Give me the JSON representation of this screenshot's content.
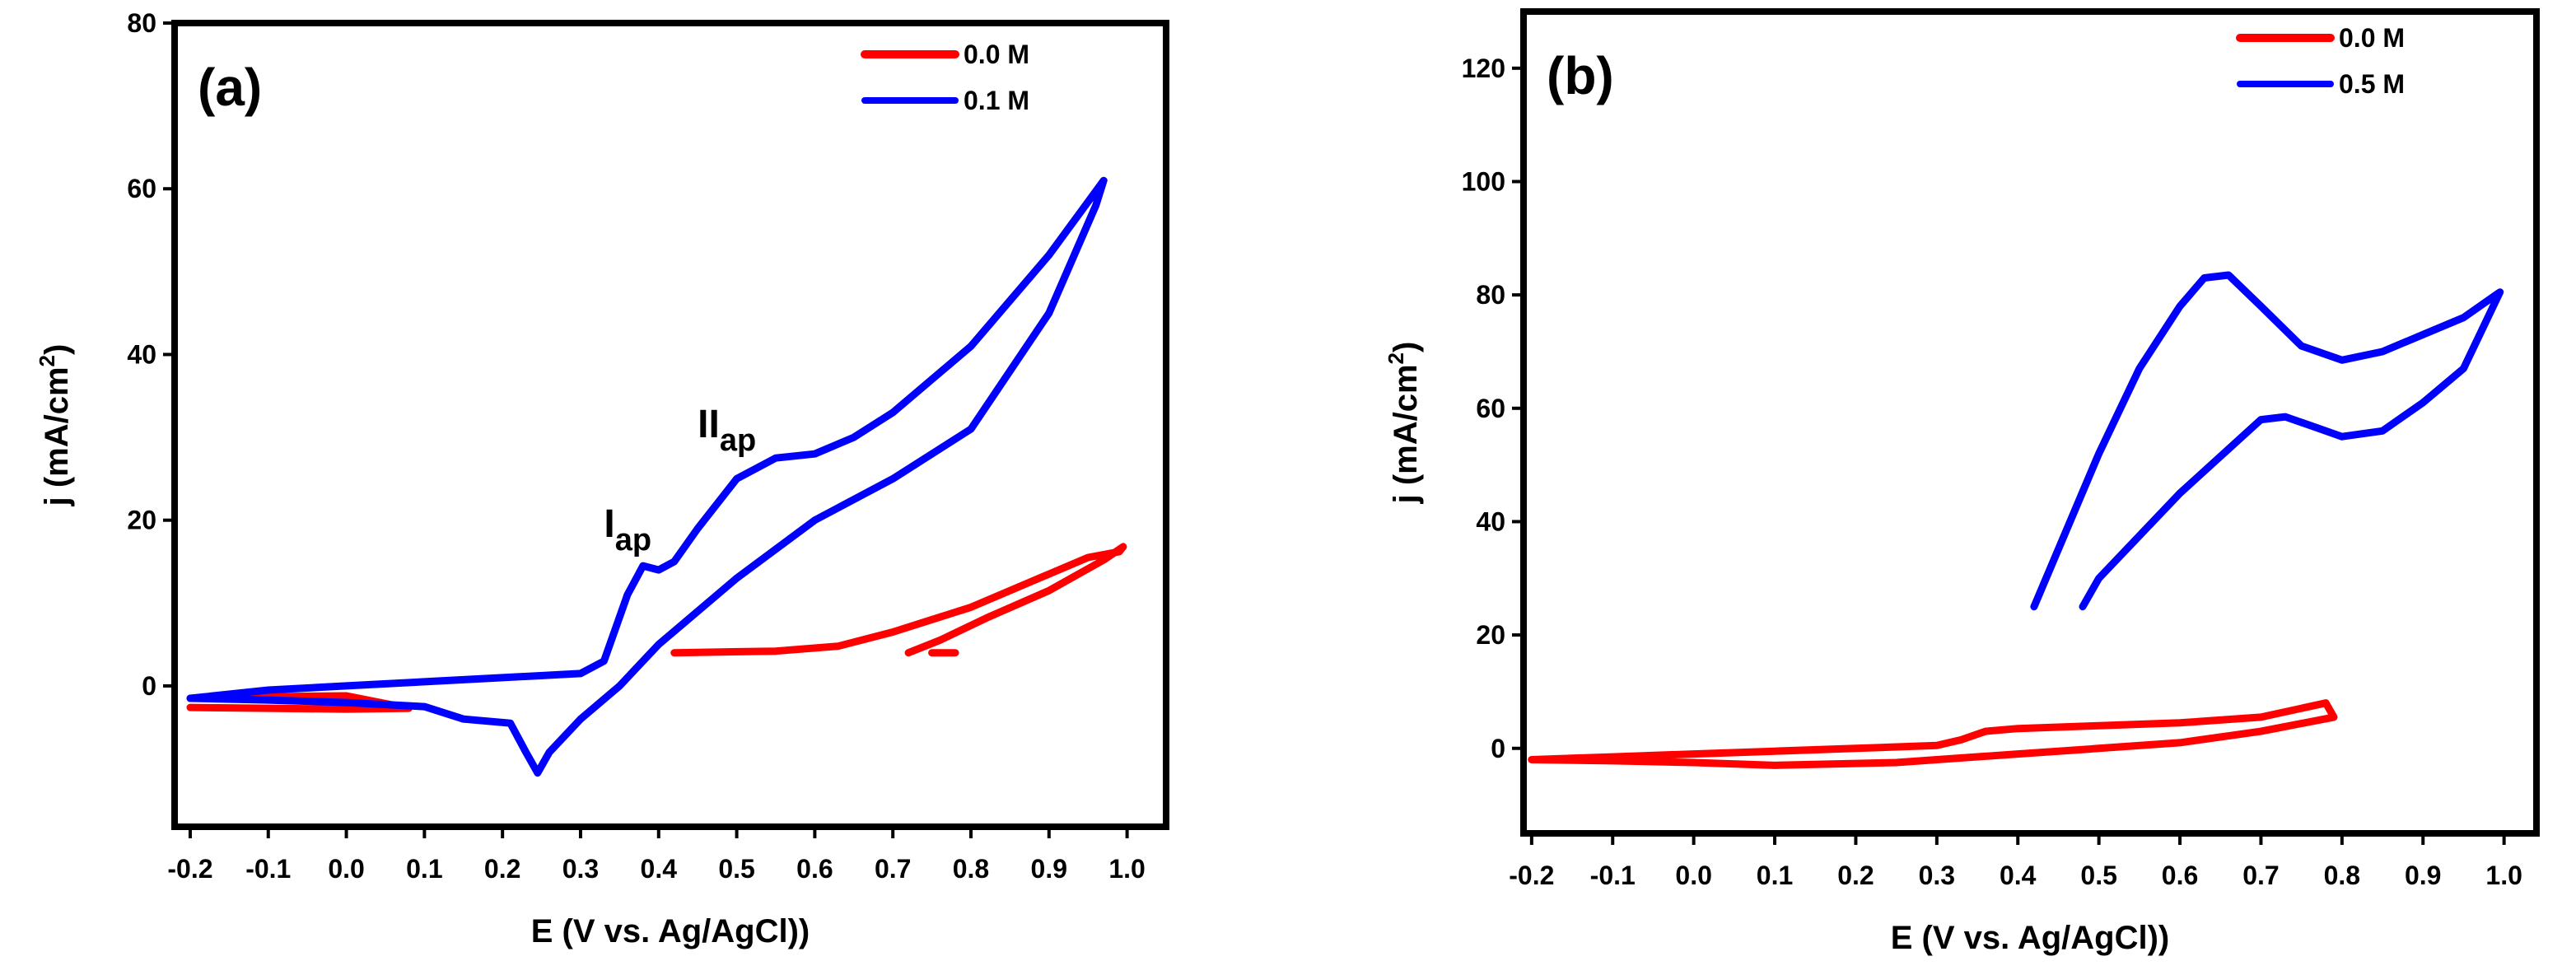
{
  "chart_data": [
    {
      "type": "line",
      "panel_label": "(a)",
      "xlabel": "E (V vs. Ag/AgCl))",
      "ylabel_main": "j (mA/cm",
      "ylabel_sup": "2",
      "ylabel_tail": ")",
      "xlim": [
        -0.22,
        1.05
      ],
      "ylim": [
        -17,
        80
      ],
      "x_ticks": [
        -0.2,
        -0.1,
        0.0,
        0.1,
        0.2,
        0.3,
        0.4,
        0.5,
        0.6,
        0.7,
        0.8,
        0.9,
        1.0
      ],
      "x_tick_labels": [
        "-0.2",
        "-0.1",
        "0.0",
        "0.1",
        "0.2",
        "0.3",
        "0.4",
        "0.5",
        "0.6",
        "0.7",
        "0.8",
        "0.9",
        "1.0"
      ],
      "y_ticks": [
        0,
        20,
        40,
        60,
        80
      ],
      "y_tick_labels": [
        "0",
        "20",
        "40",
        "60",
        "80"
      ],
      "legend_position": "top-right",
      "annotations": [
        {
          "main": "I",
          "sub": "ap",
          "x": 0.33,
          "y": 18
        },
        {
          "main": "II",
          "sub": "ap",
          "x": 0.45,
          "y": 30
        }
      ],
      "series": [
        {
          "name": "0.0 M",
          "color": "#ff0000",
          "x": [
            -0.2,
            -0.1,
            0.0,
            0.08,
            0.0,
            -0.1,
            -0.2,
            null,
            0.42,
            0.55,
            0.63,
            0.7,
            0.8,
            0.9,
            0.95,
            0.99,
            0.995,
            0.97,
            0.9,
            0.82,
            0.76,
            0.72,
            null,
            0.75,
            0.78
          ],
          "y": [
            -2.6,
            -2.7,
            -2.8,
            -2.7,
            -1.2,
            -1.3,
            -1.5,
            null,
            4,
            4.2,
            4.8,
            6.5,
            9.5,
            13.5,
            15.5,
            16.2,
            16.8,
            15.2,
            11.5,
            8.2,
            5.5,
            4,
            null,
            4,
            4
          ]
        },
        {
          "name": "0.1 M",
          "color": "#0000ff",
          "x": [
            -0.2,
            -0.1,
            0.0,
            0.1,
            0.2,
            0.3,
            0.33,
            0.36,
            0.38,
            0.4,
            0.42,
            0.45,
            0.5,
            0.55,
            0.6,
            0.65,
            0.7,
            0.8,
            0.9,
            0.97,
            0.96,
            0.9,
            0.8,
            0.7,
            0.6,
            0.5,
            0.4,
            0.35,
            0.3,
            0.26,
            0.245,
            0.23,
            0.21,
            0.15,
            0.1,
            0.0,
            -0.1,
            -0.2
          ],
          "y": [
            -1.5,
            -0.5,
            0,
            0.5,
            1,
            1.5,
            3,
            11,
            14.5,
            14,
            15,
            19,
            25,
            27.5,
            28,
            30,
            33,
            41,
            52,
            61,
            58,
            45,
            31,
            25,
            20,
            13,
            5,
            0,
            -4,
            -8,
            -10.5,
            -8,
            -4.5,
            -4,
            -2.5,
            -2,
            -1.7,
            -1.5
          ]
        }
      ]
    },
    {
      "type": "line",
      "panel_label": "(b)",
      "xlabel": "E (V vs. Ag/AgCl))",
      "ylabel_main": "j (mA/cm",
      "ylabel_sup": "2",
      "ylabel_tail": ")",
      "xlim": [
        -0.21,
        1.04
      ],
      "ylim": [
        -15,
        130
      ],
      "x_ticks": [
        -0.2,
        -0.1,
        0.0,
        0.1,
        0.2,
        0.3,
        0.4,
        0.5,
        0.6,
        0.7,
        0.8,
        0.9,
        1.0
      ],
      "x_tick_labels": [
        "-0.2",
        "-0.1",
        "0.0",
        "0.1",
        "0.2",
        "0.3",
        "0.4",
        "0.5",
        "0.6",
        "0.7",
        "0.8",
        "0.9",
        "1.0"
      ],
      "y_ticks": [
        0,
        20,
        40,
        60,
        80,
        100,
        120
      ],
      "y_tick_labels": [
        "0",
        "20",
        "40",
        "60",
        "80",
        "100",
        "120"
      ],
      "legend_position": "top-right",
      "series": [
        {
          "name": "0.0 M",
          "color": "#ff0000",
          "x": [
            -0.2,
            -0.1,
            0.0,
            0.1,
            0.2,
            0.3,
            0.33,
            0.36,
            0.4,
            0.5,
            0.6,
            0.7,
            0.78,
            0.79,
            0.7,
            0.6,
            0.5,
            0.4,
            0.3,
            0.25,
            0.1,
            0.0,
            -0.1,
            -0.2
          ],
          "y": [
            -2,
            -1.5,
            -1,
            -0.5,
            0,
            0.5,
            1.5,
            3,
            3.5,
            4,
            4.5,
            5.5,
            8,
            5.5,
            3,
            1,
            0,
            -1,
            -2,
            -2.5,
            -3,
            -2.5,
            -2.2,
            -2
          ]
        },
        {
          "name": "0.5 M",
          "color": "#0000ff",
          "x": [
            0.42,
            0.5,
            0.55,
            0.6,
            0.63,
            0.66,
            0.7,
            0.75,
            0.8,
            0.85,
            0.9,
            0.95,
            0.99,
            0.995,
            0.97,
            0.95,
            0.9,
            0.85,
            0.8,
            0.76,
            0.73,
            0.7,
            0.6,
            0.5,
            0.48
          ],
          "y": [
            25,
            52,
            67,
            78,
            83,
            83.5,
            78,
            71,
            68.5,
            70,
            73,
            76,
            80,
            80.5,
            73,
            67,
            61,
            56,
            55,
            57,
            58.5,
            58,
            45,
            30,
            25
          ]
        }
      ]
    }
  ]
}
